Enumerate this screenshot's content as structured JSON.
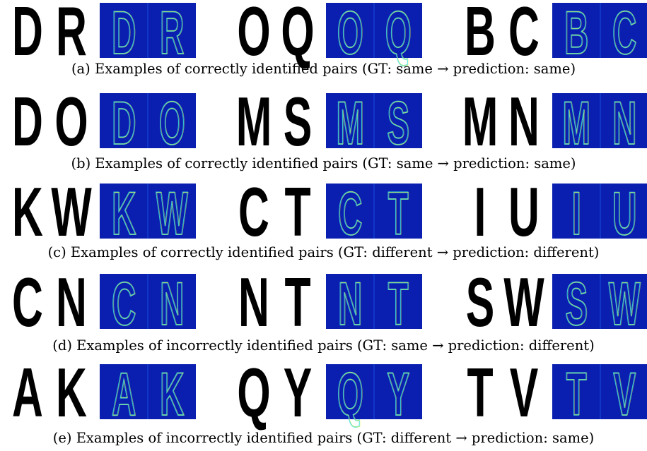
{
  "figure": {
    "rows": [
      {
        "caption": "(a) Examples of correctly identified pairs (GT: same → prediction: same)",
        "pairs": [
          {
            "left": "D",
            "right": "R"
          },
          {
            "left": "O",
            "right": "Q"
          },
          {
            "left": "B",
            "right": "C"
          }
        ]
      },
      {
        "caption": "(b) Examples of correctly identified pairs (GT: same → prediction: same)",
        "pairs": [
          {
            "left": "D",
            "right": "O"
          },
          {
            "left": "M",
            "right": "S"
          },
          {
            "left": "M",
            "right": "N"
          }
        ]
      },
      {
        "caption": "(c) Examples of correctly identified pairs (GT: different → prediction: different)",
        "pairs": [
          {
            "left": "K",
            "right": "W"
          },
          {
            "left": "C",
            "right": "T"
          },
          {
            "left": "I",
            "right": "U"
          }
        ]
      },
      {
        "caption": "(d) Examples of incorrectly identified pairs (GT: same → prediction: different)",
        "pairs": [
          {
            "left": "C",
            "right": "N"
          },
          {
            "left": "N",
            "right": "T"
          },
          {
            "left": "S",
            "right": "W"
          }
        ]
      },
      {
        "caption": "(e) Examples of incorrectly identified pairs (GT: different → prediction: same)",
        "pairs": [
          {
            "left": "A",
            "right": "K"
          },
          {
            "left": "Q",
            "right": "Y"
          },
          {
            "left": "T",
            "right": "V"
          }
        ]
      }
    ],
    "colors": {
      "heatmap_bg": "#0a1fb0",
      "heatmap_low": "#1e6bff",
      "heatmap_mid": "#3fe0d8",
      "heatmap_high": "#f0f040",
      "heatmap_peak": "#e02010"
    }
  }
}
